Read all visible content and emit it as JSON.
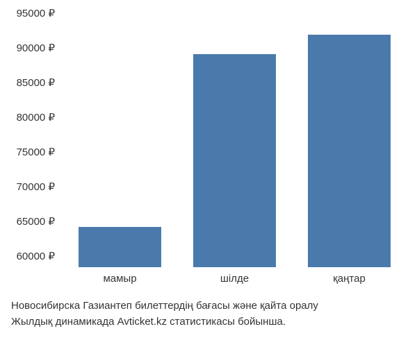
{
  "chart": {
    "type": "bar",
    "categories": [
      "мамыр",
      "шілде",
      "қаңтар"
    ],
    "values": [
      63300,
      88200,
      91000
    ],
    "bar_color": "#4a7aab",
    "ylim": [
      57500,
      95000
    ],
    "ytick_step": 5000,
    "yticks": [
      60000,
      65000,
      70000,
      75000,
      80000,
      85000,
      90000,
      95000
    ],
    "currency": "₽",
    "background_color": "#ffffff",
    "bar_width": 0.72,
    "tick_fontsize": 15,
    "caption_fontsize": 15,
    "text_color": "#333333"
  },
  "caption": {
    "line1": "Новосибирска Газиантеп билеттердің бағасы және қайта оралу",
    "line2": "Жылдық динамикада Avticket.kz статистикасы бойынша."
  }
}
